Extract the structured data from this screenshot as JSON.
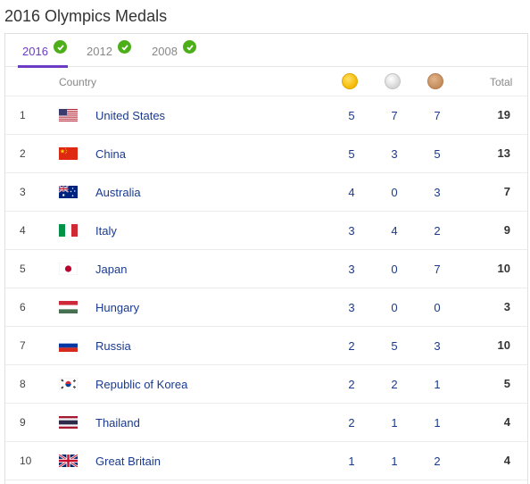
{
  "title": "2016 Olympics Medals",
  "tabs": [
    {
      "label": "2016",
      "active": true
    },
    {
      "label": "2012",
      "active": false
    },
    {
      "label": "2008",
      "active": false
    }
  ],
  "header": {
    "country": "Country",
    "total": "Total",
    "medal_icons": [
      "gold-medal-icon",
      "silver-medal-icon",
      "bronze-medal-icon"
    ]
  },
  "rows": [
    {
      "rank": "1",
      "flag": "us-flag-icon",
      "country": "United States",
      "gold": "5",
      "silver": "7",
      "bronze": "7",
      "total": "19"
    },
    {
      "rank": "2",
      "flag": "china-flag-icon",
      "country": "China",
      "gold": "5",
      "silver": "3",
      "bronze": "5",
      "total": "13"
    },
    {
      "rank": "3",
      "flag": "australia-flag-icon",
      "country": "Australia",
      "gold": "4",
      "silver": "0",
      "bronze": "3",
      "total": "7"
    },
    {
      "rank": "4",
      "flag": "italy-flag-icon",
      "country": "Italy",
      "gold": "3",
      "silver": "4",
      "bronze": "2",
      "total": "9"
    },
    {
      "rank": "5",
      "flag": "japan-flag-icon",
      "country": "Japan",
      "gold": "3",
      "silver": "0",
      "bronze": "7",
      "total": "10"
    },
    {
      "rank": "6",
      "flag": "hungary-flag-icon",
      "country": "Hungary",
      "gold": "3",
      "silver": "0",
      "bronze": "0",
      "total": "3"
    },
    {
      "rank": "7",
      "flag": "russia-flag-icon",
      "country": "Russia",
      "gold": "2",
      "silver": "5",
      "bronze": "3",
      "total": "10"
    },
    {
      "rank": "8",
      "flag": "korea-flag-icon",
      "country": "Republic of Korea",
      "gold": "2",
      "silver": "2",
      "bronze": "1",
      "total": "5"
    },
    {
      "rank": "9",
      "flag": "thailand-flag-icon",
      "country": "Thailand",
      "gold": "2",
      "silver": "1",
      "bronze": "1",
      "total": "4"
    },
    {
      "rank": "10",
      "flag": "uk-flag-icon",
      "country": "Great Britain",
      "gold": "1",
      "silver": "1",
      "bronze": "2",
      "total": "4"
    }
  ],
  "colors": {
    "accent": "#6c3cc4",
    "link": "#1a3a8f",
    "check": "#4caf1a"
  }
}
